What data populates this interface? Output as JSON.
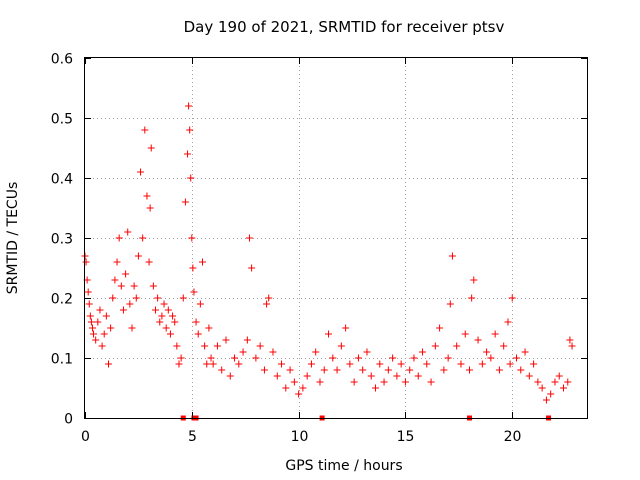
{
  "chart_data": {
    "type": "scatter",
    "title": "Day 190 of 2021, SRMTID for receiver ptsv",
    "xlabel": "GPS time / hours",
    "ylabel": "SRMTID / TECUs",
    "xlim": [
      0,
      23.5
    ],
    "ylim": [
      0,
      0.6
    ],
    "xticks": [
      0,
      5,
      10,
      15,
      20
    ],
    "yticks": [
      0,
      0.1,
      0.2,
      0.3,
      0.4,
      0.5,
      0.6
    ],
    "xtick_labels": [
      "0",
      "5",
      "10",
      "15",
      "20"
    ],
    "ytick_labels": [
      "0",
      "0.1",
      "0.2",
      "0.3",
      "0.4",
      "0.5",
      "0.6"
    ],
    "grid": true,
    "marker": "+",
    "color": "#ff0000",
    "gap_markers_x": [
      4.6,
      5.1,
      5.2,
      11.1,
      18.0,
      21.7
    ],
    "series": [
      {
        "name": "SRMTID",
        "x": [
          0.0,
          0.05,
          0.1,
          0.15,
          0.2,
          0.25,
          0.3,
          0.35,
          0.4,
          0.5,
          0.6,
          0.7,
          0.8,
          0.9,
          1.0,
          1.1,
          1.2,
          1.3,
          1.4,
          1.5,
          1.6,
          1.7,
          1.8,
          1.9,
          2.0,
          2.1,
          2.2,
          2.3,
          2.4,
          2.5,
          2.6,
          2.7,
          2.8,
          2.9,
          3.0,
          3.05,
          3.1,
          3.2,
          3.3,
          3.4,
          3.5,
          3.6,
          3.7,
          3.8,
          3.9,
          4.0,
          4.1,
          4.2,
          4.3,
          4.4,
          4.5,
          4.6,
          4.7,
          4.8,
          4.85,
          4.9,
          4.95,
          5.0,
          5.05,
          5.1,
          5.2,
          5.3,
          5.4,
          5.5,
          5.6,
          5.7,
          5.8,
          5.9,
          6.0,
          6.2,
          6.4,
          6.6,
          6.8,
          7.0,
          7.2,
          7.4,
          7.6,
          7.7,
          7.8,
          8.0,
          8.2,
          8.4,
          8.5,
          8.6,
          8.8,
          9.0,
          9.2,
          9.4,
          9.6,
          9.8,
          10.0,
          10.2,
          10.4,
          10.6,
          10.8,
          11.0,
          11.2,
          11.4,
          11.6,
          11.8,
          12.0,
          12.2,
          12.4,
          12.6,
          12.8,
          13.0,
          13.2,
          13.4,
          13.6,
          13.8,
          14.0,
          14.2,
          14.4,
          14.6,
          14.8,
          15.0,
          15.2,
          15.4,
          15.6,
          15.8,
          16.0,
          16.2,
          16.4,
          16.6,
          16.8,
          17.0,
          17.1,
          17.2,
          17.4,
          17.6,
          17.8,
          18.0,
          18.1,
          18.2,
          18.4,
          18.6,
          18.8,
          19.0,
          19.2,
          19.4,
          19.6,
          19.8,
          19.9,
          20.0,
          20.2,
          20.4,
          20.6,
          20.8,
          21.0,
          21.2,
          21.4,
          21.6,
          21.8,
          22.0,
          22.2,
          22.4,
          22.6,
          22.7,
          22.8
        ],
        "y": [
          0.27,
          0.26,
          0.23,
          0.21,
          0.19,
          0.17,
          0.16,
          0.15,
          0.14,
          0.13,
          0.16,
          0.18,
          0.12,
          0.14,
          0.17,
          0.09,
          0.15,
          0.2,
          0.23,
          0.26,
          0.3,
          0.22,
          0.18,
          0.24,
          0.31,
          0.19,
          0.15,
          0.22,
          0.2,
          0.27,
          0.41,
          0.3,
          0.48,
          0.37,
          0.26,
          0.35,
          0.45,
          0.22,
          0.18,
          0.2,
          0.16,
          0.17,
          0.19,
          0.15,
          0.18,
          0.14,
          0.17,
          0.16,
          0.12,
          0.09,
          0.1,
          0.2,
          0.36,
          0.44,
          0.52,
          0.48,
          0.4,
          0.3,
          0.25,
          0.21,
          0.16,
          0.14,
          0.19,
          0.26,
          0.12,
          0.09,
          0.15,
          0.1,
          0.09,
          0.12,
          0.08,
          0.13,
          0.07,
          0.1,
          0.09,
          0.11,
          0.13,
          0.3,
          0.25,
          0.1,
          0.12,
          0.08,
          0.19,
          0.2,
          0.11,
          0.07,
          0.09,
          0.05,
          0.08,
          0.06,
          0.04,
          0.05,
          0.07,
          0.09,
          0.11,
          0.06,
          0.08,
          0.14,
          0.1,
          0.08,
          0.12,
          0.15,
          0.09,
          0.06,
          0.1,
          0.08,
          0.11,
          0.07,
          0.05,
          0.09,
          0.06,
          0.08,
          0.1,
          0.07,
          0.09,
          0.06,
          0.08,
          0.1,
          0.07,
          0.11,
          0.09,
          0.06,
          0.12,
          0.15,
          0.08,
          0.1,
          0.19,
          0.27,
          0.12,
          0.09,
          0.14,
          0.08,
          0.2,
          0.23,
          0.13,
          0.09,
          0.11,
          0.1,
          0.14,
          0.08,
          0.12,
          0.16,
          0.09,
          0.2,
          0.1,
          0.08,
          0.11,
          0.07,
          0.09,
          0.06,
          0.05,
          0.03,
          0.04,
          0.06,
          0.07,
          0.05,
          0.06,
          0.13,
          0.12
        ]
      }
    ]
  }
}
